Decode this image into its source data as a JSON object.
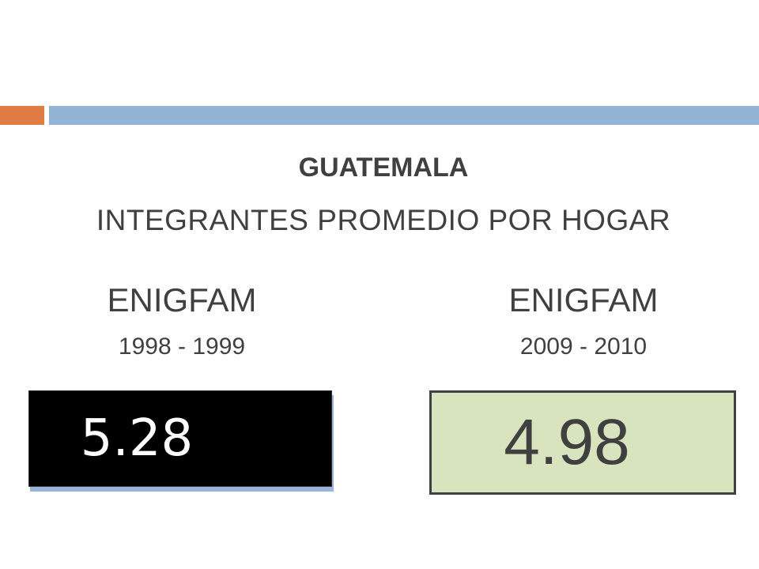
{
  "header": {
    "title": "GUATEMALA",
    "subtitle": "INTEGRANTES PROMEDIO POR HOGAR"
  },
  "panels": [
    {
      "label": "ENIGFAM",
      "period": "1998 - 1999",
      "value": 5.28
    },
    {
      "label": "ENIGFAM",
      "period": "2009 - 2010",
      "value": 4.98
    }
  ]
}
